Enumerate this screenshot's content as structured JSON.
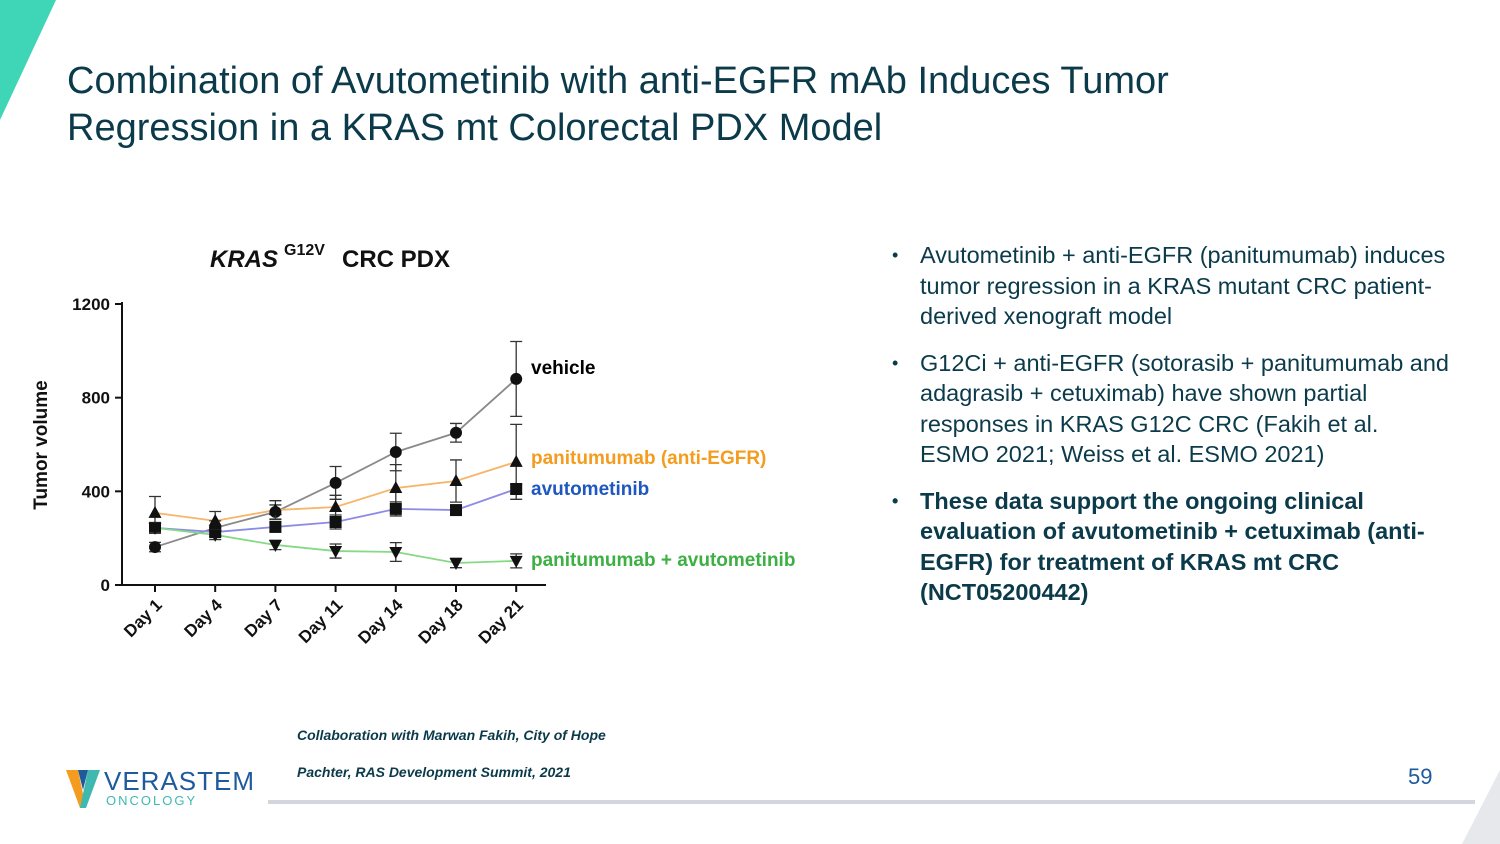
{
  "slide": {
    "title": "Combination of Avutometinib with anti-EGFR mAb Induces Tumor Regression in a KRAS mt Colorectal PDX Model",
    "bullets": [
      "Avutometinib + anti-EGFR (panitumumab) induces tumor regression in a KRAS mutant CRC patient-derived xenograft model",
      "G12Ci + anti-EGFR (sotorasib + panitumumab and adagrasib + cetuximab) have shown partial responses in KRAS G12C CRC (Fakih et al. ESMO 2021; Weiss et al. ESMO 2021)",
      "These data support the ongoing clinical evaluation of avutometinib + cetuximab (anti-EGFR) for treatment of KRAS mt CRC (NCT05200442)"
    ],
    "footnotes": [
      "Collaboration with Marwan Fakih, City of Hope",
      "Pachter, RAS Development Summit, 2021"
    ],
    "page_number": "59",
    "logo": {
      "name": "VERASTEM",
      "sub": "ONCOLOGY"
    }
  },
  "chart_data": {
    "type": "line",
    "title": "KRAS",
    "title_sup": "G12V",
    "title_rest": "CRC PDX",
    "y_label": "Tumor volume",
    "categories": [
      "Day 1",
      "Day 4",
      "Day 7",
      "Day 11",
      "Day 14",
      "Day 18",
      "Day 21"
    ],
    "ylim": [
      0,
      1200
    ],
    "yticks": [
      0,
      400,
      800,
      1200
    ],
    "series": [
      {
        "name": "vehicle",
        "color": "#8a8a8a",
        "label_color": "#000000",
        "marker": "circle",
        "values": [
          162,
          244,
          312,
          436,
          568,
          650,
          880
        ],
        "errors": [
          20,
          30,
          30,
          70,
          80,
          40,
          160
        ]
      },
      {
        "name": "panitumumab (anti-EGFR)",
        "color": "#f7b56a",
        "label_color": "#f39c1f",
        "marker": "triangle",
        "values": [
          308,
          274,
          320,
          333,
          414,
          444,
          526
        ],
        "errors": [
          70,
          40,
          40,
          50,
          100,
          90,
          160
        ]
      },
      {
        "name": "avutometinib",
        "color": "#8c8ce6",
        "label_color": "#1f57c0",
        "marker": "square",
        "values": [
          244,
          226,
          248,
          269,
          325,
          320,
          410
        ],
        "errors": [
          20,
          20,
          20,
          30,
          30,
          20,
          20
        ]
      },
      {
        "name": "panitumumab + avutometinib",
        "color": "#86d986",
        "label_color": "#3cb043",
        "marker": "triangle-down",
        "values": [
          244,
          214,
          171,
          145,
          141,
          94,
          103
        ],
        "errors": [
          20,
          20,
          20,
          30,
          40,
          20,
          30
        ]
      }
    ]
  }
}
